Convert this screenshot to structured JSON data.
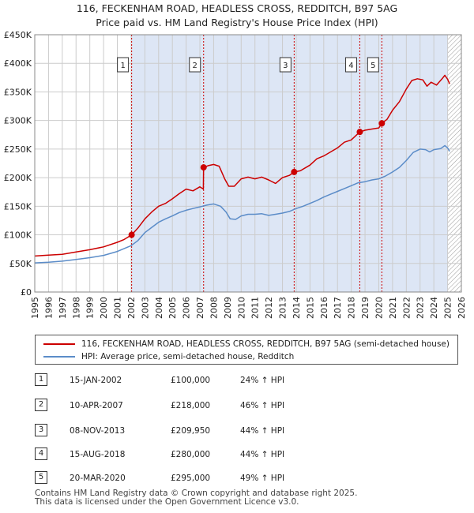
{
  "title_line1": "116, FECKENHAM ROAD, HEADLESS CROSS, REDDITCH, B97 5AG",
  "title_line2": "Price paid vs. HM Land Registry's House Price Index (HPI)",
  "legend": {
    "property": "116, FECKENHAM ROAD, HEADLESS CROSS, REDDITCH, B97 5AG (semi-detached house)",
    "hpi": "HPI: Average price, semi-detached house, Redditch"
  },
  "sales": [
    {
      "num": "1",
      "date": "15-JAN-2002",
      "price": "£100,000",
      "pct": "24% ↑ HPI"
    },
    {
      "num": "2",
      "date": "10-APR-2007",
      "price": "£218,000",
      "pct": "46% ↑ HPI"
    },
    {
      "num": "3",
      "date": "08-NOV-2013",
      "price": "£209,950",
      "pct": "44% ↑ HPI"
    },
    {
      "num": "4",
      "date": "15-AUG-2018",
      "price": "£280,000",
      "pct": "44% ↑ HPI"
    },
    {
      "num": "5",
      "date": "20-MAR-2020",
      "price": "£295,000",
      "pct": "49% ↑ HPI"
    }
  ],
  "footer_line1": "Contains HM Land Registry data © Crown copyright and database right 2025.",
  "footer_line2": "This data is licensed under the Open Government Licence v3.0.",
  "colors": {
    "property": "#cc0000",
    "hpi": "#5b8cc8",
    "shade": "#dde6f5",
    "grid": "#cccccc"
  },
  "chart_data": {
    "type": "line",
    "title": "116, FECKENHAM ROAD, HEADLESS CROSS, REDDITCH, B97 5AG - Price paid vs. HM Land Registry's House Price Index (HPI)",
    "xlabel": "",
    "ylabel": "",
    "xlim": [
      1995,
      2026
    ],
    "ylim": [
      0,
      450000
    ],
    "y_ticks": [
      0,
      50000,
      100000,
      150000,
      200000,
      250000,
      300000,
      350000,
      400000,
      450000
    ],
    "y_tick_labels": [
      "£0",
      "£50K",
      "£100K",
      "£150K",
      "£200K",
      "£250K",
      "£300K",
      "£350K",
      "£400K",
      "£450K"
    ],
    "x_ticks": [
      1995,
      1996,
      1997,
      1998,
      1999,
      2000,
      2001,
      2002,
      2003,
      2004,
      2005,
      2006,
      2007,
      2008,
      2009,
      2010,
      2011,
      2012,
      2013,
      2014,
      2015,
      2016,
      2017,
      2018,
      2019,
      2020,
      2021,
      2022,
      2023,
      2024,
      2025,
      2026
    ],
    "forecast_from": 2025.0,
    "sale_markers": [
      {
        "label": "1",
        "x": 2002.04,
        "y": 100000
      },
      {
        "label": "2",
        "x": 2007.27,
        "y": 218000
      },
      {
        "label": "3",
        "x": 2013.85,
        "y": 209950
      },
      {
        "label": "4",
        "x": 2018.62,
        "y": 280000
      },
      {
        "label": "5",
        "x": 2020.22,
        "y": 295000
      }
    ],
    "series": [
      {
        "name": "116, FECKENHAM ROAD, HEADLESS CROSS, REDDITCH, B97 5AG (semi-detached house)",
        "points": [
          [
            1995.0,
            63000
          ],
          [
            1996.0,
            64500
          ],
          [
            1997.0,
            66000
          ],
          [
            1998.0,
            70000
          ],
          [
            1999.0,
            74000
          ],
          [
            2000.0,
            79000
          ],
          [
            2001.0,
            87000
          ],
          [
            2001.5,
            92000
          ],
          [
            2002.04,
            100000
          ],
          [
            2002.5,
            112000
          ],
          [
            2003.0,
            128000
          ],
          [
            2003.5,
            140000
          ],
          [
            2004.0,
            150000
          ],
          [
            2004.5,
            155000
          ],
          [
            2005.0,
            163000
          ],
          [
            2005.5,
            172000
          ],
          [
            2006.0,
            180000
          ],
          [
            2006.5,
            177000
          ],
          [
            2007.0,
            184000
          ],
          [
            2007.25,
            180000
          ],
          [
            2007.27,
            218000
          ],
          [
            2007.6,
            221000
          ],
          [
            2008.0,
            223000
          ],
          [
            2008.4,
            220000
          ],
          [
            2008.8,
            198000
          ],
          [
            2009.1,
            185000
          ],
          [
            2009.5,
            185000
          ],
          [
            2010.0,
            198000
          ],
          [
            2010.5,
            201000
          ],
          [
            2011.0,
            198000
          ],
          [
            2011.5,
            201000
          ],
          [
            2012.0,
            196000
          ],
          [
            2012.5,
            190000
          ],
          [
            2013.0,
            200000
          ],
          [
            2013.5,
            204000
          ],
          [
            2013.85,
            209950
          ],
          [
            2014.3,
            212000
          ],
          [
            2015.0,
            222000
          ],
          [
            2015.5,
            233000
          ],
          [
            2016.0,
            238000
          ],
          [
            2016.5,
            245000
          ],
          [
            2017.0,
            252000
          ],
          [
            2017.5,
            262000
          ],
          [
            2018.0,
            266000
          ],
          [
            2018.62,
            280000
          ],
          [
            2019.0,
            283000
          ],
          [
            2019.5,
            285000
          ],
          [
            2020.0,
            287000
          ],
          [
            2020.22,
            295000
          ],
          [
            2020.6,
            302000
          ],
          [
            2021.0,
            318000
          ],
          [
            2021.5,
            333000
          ],
          [
            2022.0,
            355000
          ],
          [
            2022.4,
            370000
          ],
          [
            2022.8,
            373000
          ],
          [
            2023.2,
            371000
          ],
          [
            2023.5,
            360000
          ],
          [
            2023.8,
            367000
          ],
          [
            2024.2,
            362000
          ],
          [
            2024.6,
            373000
          ],
          [
            2024.8,
            379000
          ],
          [
            2025.0,
            372000
          ],
          [
            2025.15,
            364000
          ]
        ]
      },
      {
        "name": "HPI: Average price, semi-detached house, Redditch",
        "points": [
          [
            1995.0,
            51000
          ],
          [
            1996.0,
            52000
          ],
          [
            1997.0,
            54000
          ],
          [
            1998.0,
            57000
          ],
          [
            1999.0,
            60000
          ],
          [
            2000.0,
            64000
          ],
          [
            2001.0,
            71000
          ],
          [
            2001.5,
            76000
          ],
          [
            2002.0,
            81000
          ],
          [
            2002.5,
            90000
          ],
          [
            2003.0,
            104000
          ],
          [
            2003.5,
            113000
          ],
          [
            2004.0,
            122000
          ],
          [
            2004.5,
            128000
          ],
          [
            2005.0,
            133000
          ],
          [
            2005.5,
            139000
          ],
          [
            2006.0,
            143000
          ],
          [
            2006.5,
            146000
          ],
          [
            2007.0,
            149000
          ],
          [
            2007.5,
            152000
          ],
          [
            2008.0,
            154000
          ],
          [
            2008.5,
            150000
          ],
          [
            2008.9,
            140000
          ],
          [
            2009.2,
            128000
          ],
          [
            2009.6,
            127000
          ],
          [
            2010.0,
            133000
          ],
          [
            2010.5,
            136000
          ],
          [
            2011.0,
            136000
          ],
          [
            2011.5,
            137000
          ],
          [
            2012.0,
            134000
          ],
          [
            2012.5,
            136000
          ],
          [
            2013.0,
            138000
          ],
          [
            2013.5,
            141000
          ],
          [
            2014.0,
            146000
          ],
          [
            2014.5,
            150000
          ],
          [
            2015.0,
            155000
          ],
          [
            2015.5,
            160000
          ],
          [
            2016.0,
            166000
          ],
          [
            2016.5,
            171000
          ],
          [
            2017.0,
            176000
          ],
          [
            2017.5,
            181000
          ],
          [
            2018.0,
            186000
          ],
          [
            2018.5,
            191000
          ],
          [
            2019.0,
            193000
          ],
          [
            2019.5,
            196000
          ],
          [
            2020.0,
            198000
          ],
          [
            2020.5,
            203000
          ],
          [
            2021.0,
            210000
          ],
          [
            2021.5,
            218000
          ],
          [
            2022.0,
            230000
          ],
          [
            2022.5,
            244000
          ],
          [
            2023.0,
            250000
          ],
          [
            2023.4,
            249000
          ],
          [
            2023.7,
            245000
          ],
          [
            2024.0,
            249000
          ],
          [
            2024.5,
            251000
          ],
          [
            2024.8,
            256000
          ],
          [
            2025.0,
            252000
          ],
          [
            2025.15,
            246000
          ]
        ]
      }
    ]
  }
}
